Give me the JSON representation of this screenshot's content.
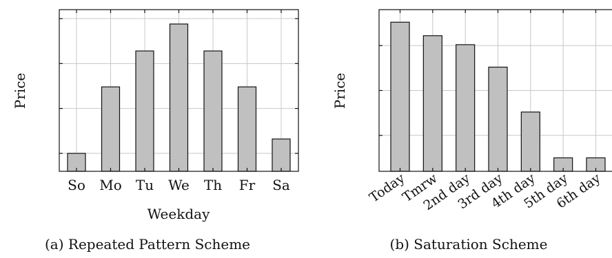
{
  "colors": {
    "bar_fill": "#c0c0c0",
    "bar_stroke": "#111111",
    "grid": "#c8c8c8",
    "axis": "#111111"
  },
  "chart_data": [
    {
      "type": "bar",
      "caption": "(a) Repeated Pattern Scheme",
      "xlabel": "Weekday",
      "ylabel": "Price",
      "categories": [
        "So",
        "Mo",
        "Tu",
        "We",
        "Th",
        "Fr",
        "Sa"
      ],
      "values": [
        1.0,
        4.7,
        6.7,
        8.2,
        6.7,
        4.7,
        1.8
      ],
      "ylim": [
        0,
        9
      ],
      "yticks": [
        1,
        3.5,
        6,
        8.5
      ],
      "grid": true,
      "tick_labels_rotated": false
    },
    {
      "type": "bar",
      "caption": "(b) Saturation Scheme",
      "xlabel": "",
      "ylabel": "Price",
      "categories": [
        "Today",
        "Tmrw",
        "2nd day",
        "3rd day",
        "4th day",
        "5th day",
        "6th day"
      ],
      "values": [
        8.3,
        7.55,
        7.05,
        5.8,
        3.3,
        0.75,
        0.75
      ],
      "ylim": [
        0,
        9
      ],
      "yticks": [
        2.0,
        4.5,
        7.0
      ],
      "grid": true,
      "tick_labels_rotated": true
    }
  ]
}
